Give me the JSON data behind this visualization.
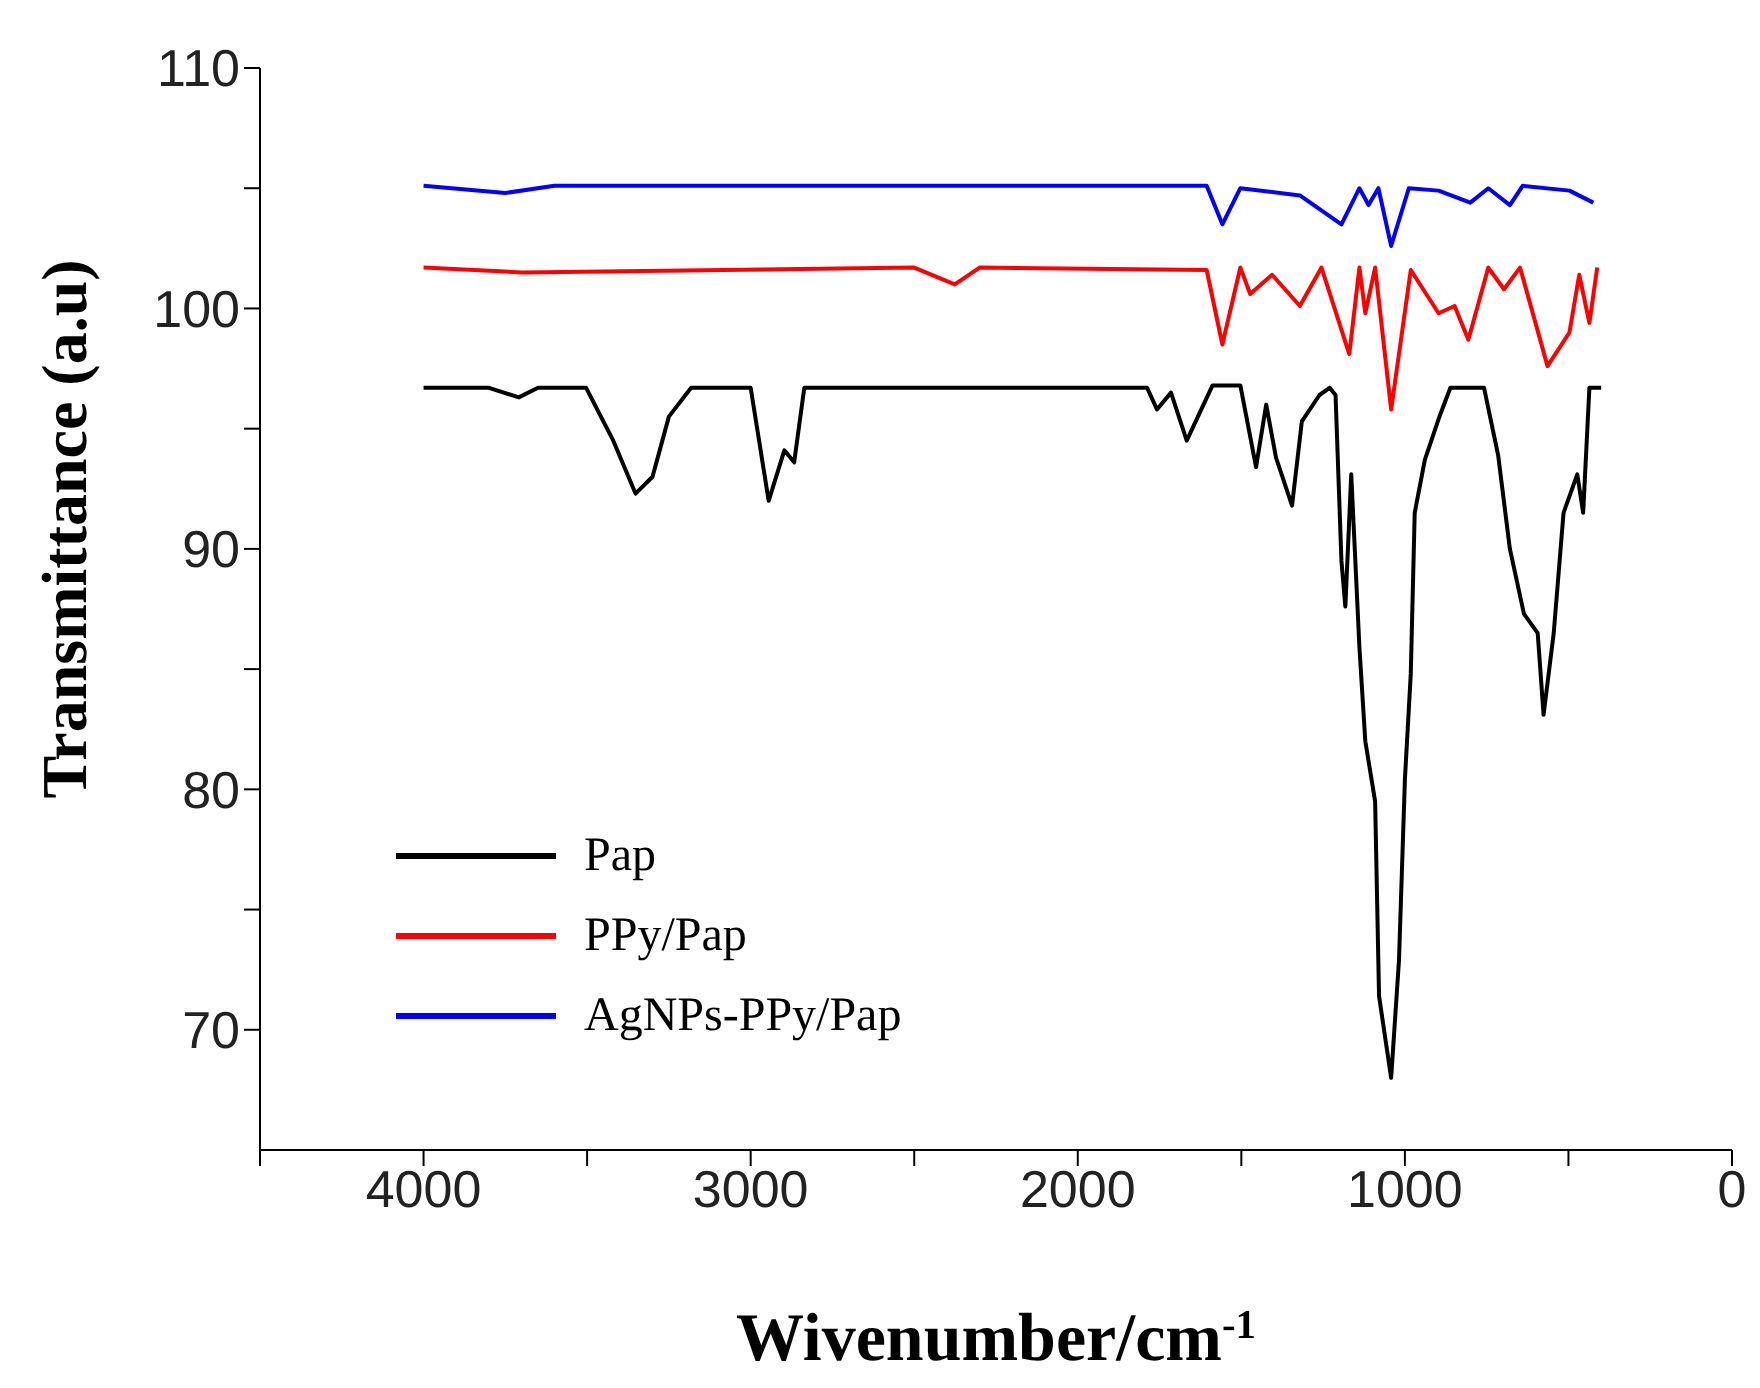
{
  "chart_data": {
    "type": "line",
    "xlabel": "Wivenumber/cm$^{-1}$",
    "ylabel": "Transmittance (a.u)",
    "xlim": [
      4500,
      0
    ],
    "xticks": [
      {
        "value": 4500,
        "label": null
      },
      4000,
      {
        "value": 3500,
        "label": null
      },
      3000,
      {
        "value": 2500,
        "label": null
      },
      2000,
      {
        "value": 1500,
        "label": null
      },
      1000,
      {
        "value": 500,
        "label": null
      },
      0
    ],
    "ylim": [
      65,
      110
    ],
    "yticks": [
      70,
      {
        "value": 75,
        "label": null
      },
      80,
      {
        "value": 85,
        "label": null
      },
      90,
      {
        "value": 95,
        "label": null
      },
      100,
      {
        "value": 105,
        "label": null
      },
      110
    ],
    "grid": false,
    "legend": "bottom left",
    "marker": "none",
    "line_style": "solid",
    "series": [
      {
        "name": "Pap",
        "color": "#000000",
        "x": [
          4000,
          3800,
          3709,
          3650,
          3503,
          3420,
          3352,
          3300,
          3250,
          3182,
          3000,
          2945,
          2897,
          2867,
          2836,
          2500,
          2000,
          1909,
          1788,
          1758,
          1715,
          1667,
          1588,
          1503,
          1455,
          1424,
          1394,
          1345,
          1315,
          1261,
          1230,
          1212,
          1194,
          1182,
          1164,
          1139,
          1121,
          1091,
          1079,
          1042,
          1018,
          1000,
          982,
          970,
          939,
          897,
          861,
          758,
          715,
          679,
          636,
          594,
          576,
          545,
          515,
          473,
          455,
          436,
          400
        ],
        "values": [
          96.7,
          96.7,
          96.3,
          96.7,
          96.7,
          94.5,
          92.3,
          93.0,
          95.5,
          96.7,
          96.7,
          92.0,
          94.1,
          93.6,
          96.7,
          96.7,
          96.7,
          96.7,
          96.7,
          95.8,
          96.5,
          94.5,
          96.8,
          96.8,
          93.4,
          96.0,
          93.8,
          91.8,
          95.3,
          96.4,
          96.7,
          96.4,
          89.5,
          87.6,
          93.1,
          85.9,
          82.0,
          79.5,
          71.4,
          68.0,
          72.9,
          80.4,
          84.8,
          91.5,
          93.7,
          95.4,
          96.7,
          96.7,
          93.9,
          90.0,
          87.3,
          86.5,
          83.1,
          86.5,
          91.5,
          93.1,
          91.5,
          96.7,
          96.7
        ]
      },
      {
        "name": "PPy/Pap",
        "color": "#ff0000",
        "x": [
          4000,
          3700,
          2500,
          2376,
          2300,
          1606,
          1558,
          1503,
          1473,
          1406,
          1321,
          1255,
          1170,
          1139,
          1121,
          1091,
          1042,
          982,
          897,
          848,
          806,
          745,
          697,
          648,
          564,
          497,
          467,
          436,
          412
        ],
        "values": [
          101.7,
          101.5,
          101.7,
          101.0,
          101.7,
          101.6,
          98.5,
          101.7,
          100.6,
          101.4,
          100.1,
          101.7,
          98.1,
          101.7,
          99.8,
          101.7,
          95.8,
          101.6,
          99.8,
          100.1,
          98.7,
          101.7,
          100.8,
          101.7,
          97.6,
          99.0,
          101.4,
          99.4,
          101.7
        ]
      },
      {
        "name": "AgNPs-PPy/Pap",
        "color": "#0000ff",
        "x": [
          4000,
          3750,
          3600,
          2000,
          1606,
          1558,
          1503,
          1321,
          1194,
          1139,
          1111,
          1081,
          1042,
          988,
          897,
          800,
          745,
          679,
          640,
          497,
          424
        ],
        "values": [
          105.1,
          104.8,
          105.1,
          105.1,
          105.1,
          103.5,
          105.0,
          104.7,
          103.5,
          105.0,
          104.3,
          105.0,
          102.6,
          105.0,
          104.9,
          104.4,
          105.0,
          104.3,
          105.1,
          104.9,
          104.4
        ]
      }
    ]
  }
}
